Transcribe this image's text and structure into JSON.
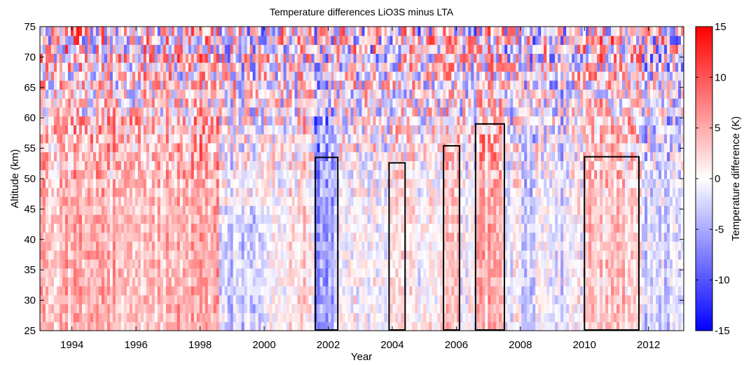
{
  "chart_data": {
    "type": "heatmap",
    "title": "Temperature differences LiO3S minus LTA",
    "xlabel": "Year",
    "ylabel": "Altitude (km)",
    "xlim": [
      1993.0,
      2013.1
    ],
    "ylim": [
      25,
      75
    ],
    "x_ticks": [
      "1994",
      "1996",
      "1998",
      "2000",
      "2002",
      "2004",
      "2006",
      "2008",
      "2010",
      "2012"
    ],
    "y_ticks": [
      "25",
      "30",
      "35",
      "40",
      "45",
      "50",
      "55",
      "60",
      "65",
      "70",
      "75"
    ],
    "colorbar": {
      "label": "Temperature difference (K)",
      "min": -15,
      "max": 15,
      "ticks": [
        "-15",
        "-10",
        "-5",
        "0",
        "5",
        "10",
        "15"
      ],
      "colors": {
        "low": "#0000ff",
        "mid": "#ffffff",
        "high": "#ff0000"
      }
    },
    "highlighted_periods": [
      {
        "x_start": 2001.6,
        "x_end": 2002.3,
        "y_bottom": 25,
        "y_top": 53.5
      },
      {
        "x_start": 2003.9,
        "x_end": 2004.4,
        "y_bottom": 25,
        "y_top": 52.6
      },
      {
        "x_start": 2005.6,
        "x_end": 2006.1,
        "y_bottom": 25,
        "y_top": 55.4
      },
      {
        "x_start": 2006.6,
        "x_end": 2007.5,
        "y_bottom": 25,
        "y_top": 59
      },
      {
        "x_start": 2010.0,
        "x_end": 2011.7,
        "y_bottom": 25,
        "y_top": 53.6
      }
    ],
    "grid": false
  }
}
